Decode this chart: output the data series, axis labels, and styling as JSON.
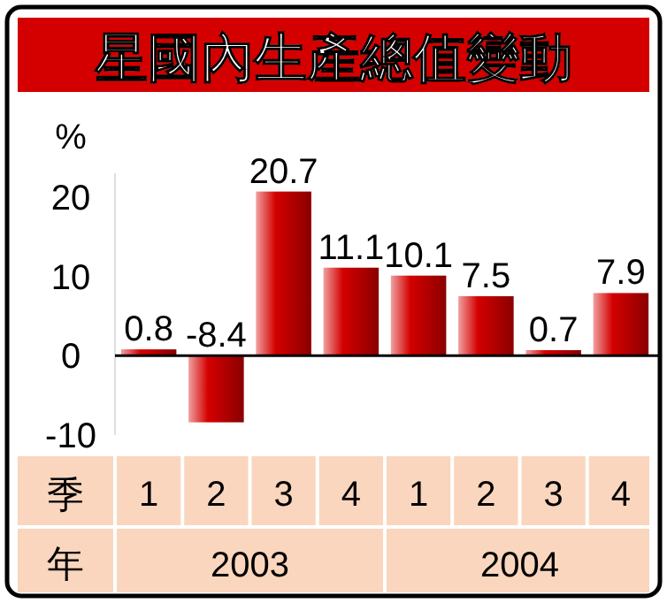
{
  "chart_data": {
    "type": "bar",
    "title": "星國內生產總值變動",
    "ylabel": "%",
    "xlabel": "季",
    "categories": [
      "1",
      "2",
      "3",
      "4",
      "1",
      "2",
      "3",
      "4"
    ],
    "values": [
      0.8,
      -8.4,
      20.7,
      11.1,
      10.1,
      7.5,
      0.7,
      7.9
    ],
    "color": "#d40000",
    "data_labels": true,
    "ylim": [
      -10,
      23
    ],
    "yticks": [
      -10,
      0,
      10,
      20
    ],
    "annotations": [
      "年",
      "2003",
      "2004"
    ],
    "ref_lines": [
      {
        "axis": "y",
        "value": 0,
        "color": "#000000"
      }
    ]
  }
}
